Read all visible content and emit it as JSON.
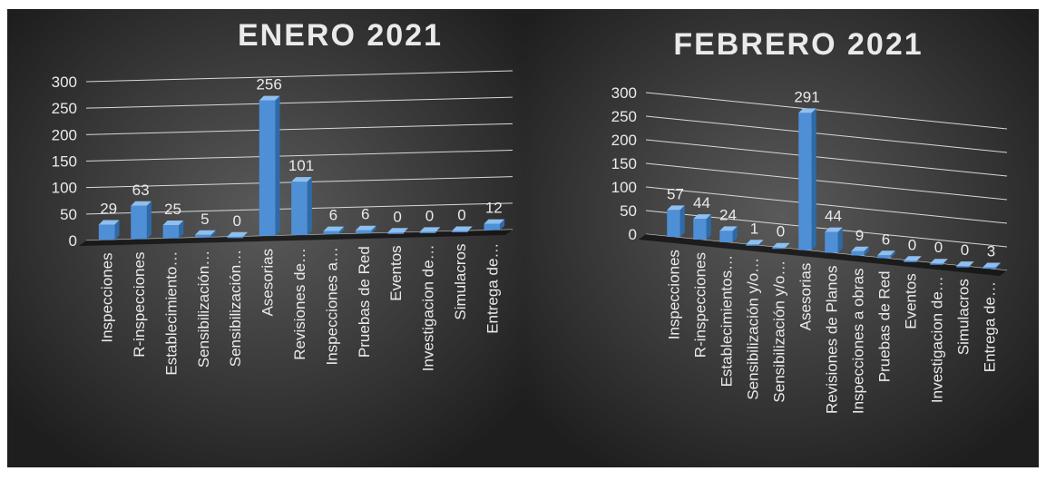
{
  "chart_data": [
    {
      "type": "bar3d",
      "title": "ENERO 2021",
      "categories": [
        "Inspecciones",
        "R-inspecciones",
        "Establecimiento…",
        "Sensibilización…",
        "Sensibilización…",
        "Asesorias",
        "Revisiones de…",
        "Inspecciones a…",
        "Pruebas de Red",
        "Eventos",
        "Investigacion de…",
        "Simulacros",
        "Entrega de…"
      ],
      "values": [
        29,
        63,
        25,
        5,
        0,
        256,
        101,
        6,
        6,
        0,
        0,
        0,
        12
      ],
      "color": "#4f8fd6",
      "ylim": [
        0,
        300
      ],
      "yticks": [
        0,
        50,
        100,
        150,
        200,
        250,
        300
      ],
      "grid": true
    },
    {
      "type": "bar3d",
      "title": "FEBRERO 2021",
      "categories": [
        "Inspecciones",
        "R-inspecciones",
        "Establecimientos…",
        "Sensibilización y/o…",
        "Sensibilización y/o…",
        "Asesorias",
        "Revisiones de Planos",
        "Inspecciones a obras",
        "Pruebas de Red",
        "Eventos",
        "Investigacion de…",
        "Simulacros",
        "Entrega de…"
      ],
      "values": [
        57,
        44,
        24,
        1,
        0,
        291,
        44,
        9,
        6,
        0,
        0,
        0,
        3
      ],
      "color": "#4f8fd6",
      "ylim": [
        0,
        300
      ],
      "yticks": [
        0,
        50,
        100,
        150,
        200,
        250,
        300
      ],
      "grid": true
    }
  ]
}
